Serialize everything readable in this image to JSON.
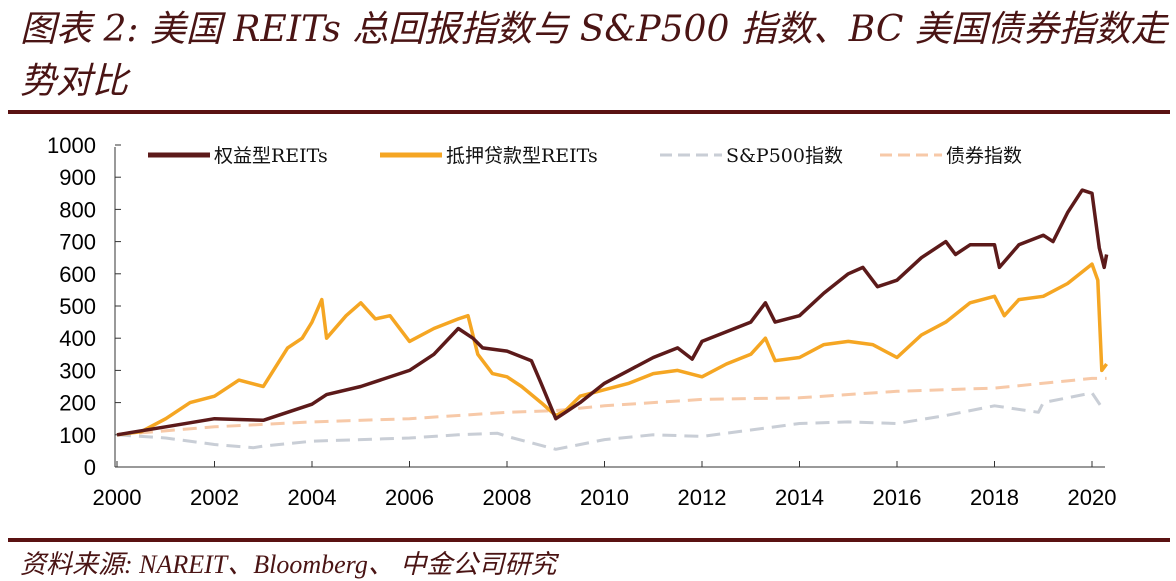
{
  "title": "图表 2:  美国 REITs 总回报指数与 S&P500 指数、BC 美国债券指数走势对比",
  "source": "资料来源:   NAREIT、Bloomberg、 中金公司研究",
  "colors": {
    "title": "#4a1414",
    "rule": "#5a1212"
  },
  "chart_data": {
    "type": "line",
    "title": "",
    "xlabel": "",
    "ylabel": "",
    "xlim": [
      2000,
      2020.4
    ],
    "ylim": [
      0,
      1000
    ],
    "x_ticks": [
      "2000",
      "2002",
      "2004",
      "2006",
      "2008",
      "2010",
      "2012",
      "2014",
      "2016",
      "2018",
      "2020"
    ],
    "y_ticks": [
      "0",
      "100",
      "200",
      "300",
      "400",
      "500",
      "600",
      "700",
      "800",
      "900",
      "1000"
    ],
    "grid": false,
    "legend_position": "top",
    "series": [
      {
        "name": "权益型REITs",
        "color": "#5c1a1a",
        "style": "solid",
        "x": [
          2000,
          2001,
          2002,
          2003,
          2004,
          2004.3,
          2005,
          2006,
          2006.5,
          2007,
          2007.3,
          2007.5,
          2008,
          2008.5,
          2008.7,
          2009,
          2009.2,
          2009.5,
          2010,
          2010.5,
          2011,
          2011.5,
          2011.8,
          2012,
          2012.5,
          2013,
          2013.3,
          2013.5,
          2014,
          2014.5,
          2015,
          2015.3,
          2015.6,
          2016,
          2016.5,
          2017,
          2017.2,
          2017.5,
          2018,
          2018.1,
          2018.5,
          2019,
          2019.2,
          2019.5,
          2019.8,
          2020,
          2020.15,
          2020.25,
          2020.3
        ],
        "y": [
          100,
          125,
          150,
          145,
          195,
          225,
          250,
          300,
          350,
          430,
          400,
          370,
          360,
          330,
          260,
          150,
          170,
          200,
          260,
          300,
          340,
          370,
          335,
          390,
          420,
          450,
          510,
          450,
          470,
          540,
          600,
          620,
          560,
          580,
          650,
          700,
          660,
          690,
          690,
          620,
          690,
          720,
          700,
          790,
          860,
          850,
          680,
          620,
          660
        ]
      },
      {
        "name": "抵押贷款型REITs",
        "color": "#f5a623",
        "style": "solid",
        "x": [
          2000,
          2000.5,
          2001,
          2001.5,
          2002,
          2002.5,
          2003,
          2003.5,
          2003.8,
          2004,
          2004.2,
          2004.3,
          2004.7,
          2005,
          2005.3,
          2005.6,
          2006,
          2006.5,
          2007,
          2007.2,
          2007.4,
          2007.7,
          2008,
          2008.3,
          2008.7,
          2009,
          2009.2,
          2009.5,
          2010,
          2010.5,
          2011,
          2011.5,
          2012,
          2012.5,
          2013,
          2013.3,
          2013.5,
          2014,
          2014.5,
          2015,
          2015.5,
          2016,
          2016.5,
          2017,
          2017.5,
          2018,
          2018.2,
          2018.5,
          2019,
          2019.5,
          2020,
          2020.12,
          2020.2,
          2020.3
        ],
        "y": [
          100,
          110,
          150,
          200,
          220,
          270,
          250,
          370,
          400,
          450,
          520,
          400,
          470,
          510,
          460,
          470,
          390,
          430,
          460,
          470,
          350,
          290,
          280,
          250,
          200,
          160,
          175,
          220,
          240,
          260,
          290,
          300,
          280,
          320,
          350,
          400,
          330,
          340,
          380,
          390,
          380,
          340,
          410,
          450,
          510,
          530,
          470,
          520,
          530,
          570,
          630,
          580,
          300,
          320
        ]
      },
      {
        "name": "S&P500指数",
        "color": "#c9ced6",
        "style": "dashed",
        "x": [
          2000,
          2001,
          2002,
          2002.8,
          2003,
          2004,
          2005,
          2006,
          2007,
          2007.8,
          2008,
          2009,
          2009.5,
          2010,
          2011,
          2012,
          2013,
          2014,
          2015,
          2016,
          2017,
          2018,
          2018.9,
          2019,
          2020,
          2020.2
        ],
        "y": [
          100,
          90,
          70,
          60,
          65,
          80,
          85,
          90,
          100,
          105,
          95,
          55,
          70,
          85,
          100,
          95,
          115,
          135,
          140,
          135,
          160,
          190,
          170,
          200,
          230,
          185
        ]
      },
      {
        "name": "债券指数",
        "color": "#f7c9a8",
        "style": "dashed",
        "x": [
          2000,
          2002,
          2004,
          2006,
          2008,
          2009,
          2010,
          2012,
          2014,
          2016,
          2018,
          2020,
          2020.3
        ],
        "y": [
          100,
          125,
          140,
          150,
          170,
          175,
          190,
          210,
          215,
          235,
          245,
          275,
          275
        ]
      }
    ]
  }
}
